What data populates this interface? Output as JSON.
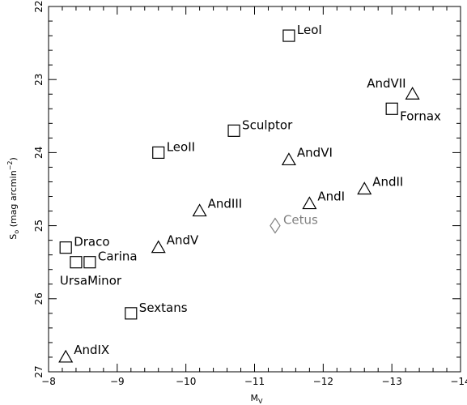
{
  "chart_data": {
    "type": "scatter",
    "xlabel": "M_V",
    "ylabel": "S_o (mag arcmin^-2)",
    "xlim": [
      -8,
      -14
    ],
    "ylim": [
      27,
      22
    ],
    "x_ticks": [
      "-8",
      "-9",
      "-10",
      "-11",
      "-12",
      "-13",
      "-14"
    ],
    "y_ticks": [
      "22",
      "23",
      "24",
      "25",
      "26",
      "27"
    ],
    "grid": false,
    "legend": "none",
    "marker_styles": {
      "square": "#000000",
      "triangle": "#000000",
      "diamond": "#808080"
    },
    "points": [
      {
        "label": "LeoI",
        "x": -11.5,
        "y": 22.4,
        "marker": "square",
        "label_pos": "right"
      },
      {
        "label": "AndVII",
        "x": -13.3,
        "y": 23.2,
        "marker": "triangle",
        "label_pos": "left-above"
      },
      {
        "label": "Fornax",
        "x": -13.0,
        "y": 23.4,
        "marker": "square",
        "label_pos": "right-below"
      },
      {
        "label": "Sculptor",
        "x": -10.7,
        "y": 23.7,
        "marker": "square",
        "label_pos": "right"
      },
      {
        "label": "LeoII",
        "x": -9.6,
        "y": 24.0,
        "marker": "square",
        "label_pos": "right"
      },
      {
        "label": "AndVI",
        "x": -11.5,
        "y": 24.1,
        "marker": "triangle",
        "label_pos": "right"
      },
      {
        "label": "AndII",
        "x": -12.6,
        "y": 24.5,
        "marker": "triangle",
        "label_pos": "right"
      },
      {
        "label": "AndI",
        "x": -11.8,
        "y": 24.7,
        "marker": "triangle",
        "label_pos": "right"
      },
      {
        "label": "AndIII",
        "x": -10.2,
        "y": 24.8,
        "marker": "triangle",
        "label_pos": "right"
      },
      {
        "label": "Cetus",
        "x": -11.3,
        "y": 25.0,
        "marker": "diamond",
        "label_pos": "right"
      },
      {
        "label": "AndV",
        "x": -9.6,
        "y": 25.3,
        "marker": "triangle",
        "label_pos": "right"
      },
      {
        "label": "Draco",
        "x": -8.25,
        "y": 25.3,
        "marker": "square",
        "label_pos": "right"
      },
      {
        "label": "",
        "x": -8.4,
        "y": 25.5,
        "marker": "square",
        "label_pos": "none"
      },
      {
        "label": "Carina",
        "x": -8.6,
        "y": 25.5,
        "marker": "square",
        "label_pos": "right"
      },
      {
        "label": "UrsaMinor",
        "x": -8.4,
        "y": 25.5,
        "marker": "square",
        "label_pos": "below"
      },
      {
        "label": "Sextans",
        "x": -9.2,
        "y": 26.2,
        "marker": "square",
        "label_pos": "right"
      },
      {
        "label": "AndIX",
        "x": -8.25,
        "y": 26.8,
        "marker": "triangle",
        "label_pos": "right"
      }
    ]
  }
}
